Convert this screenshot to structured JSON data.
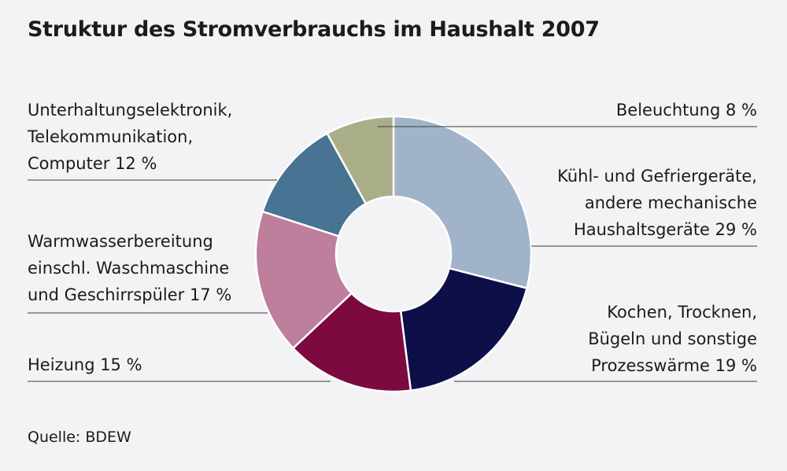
{
  "title": "Struktur des Stromverbrauchs im Haushalt 2007",
  "source": "Quelle: BDEW",
  "chart_data": {
    "type": "pie",
    "donut": true,
    "title": "Struktur des Stromverbrauchs im Haushalt 2007",
    "unit": "%",
    "slices": [
      {
        "label_lines": [
          "Kühl- und Gefriergeräte,",
          "andere mechanische",
          "Haushaltsgeräte 29 %"
        ],
        "value": 29,
        "color": "#a1b3c8"
      },
      {
        "label_lines": [
          "Kochen, Trocknen,",
          "Bügeln und sonstige",
          "Prozesswärme 19 %"
        ],
        "value": 19,
        "color": "#0e0f48"
      },
      {
        "label_lines": [
          "Heizung 15 %"
        ],
        "value": 15,
        "color": "#7c0a41"
      },
      {
        "label_lines": [
          "Warmwasserbereitung",
          "einschl. Waschmaschine",
          "und Geschirrspüler 17 %"
        ],
        "value": 17,
        "color": "#bd7f9c"
      },
      {
        "label_lines": [
          "Unterhaltungselektronik,",
          "Telekommunikation,",
          "Computer 12 %"
        ],
        "value": 12,
        "color": "#487392"
      },
      {
        "label_lines": [
          "Beleuchtung 8 %"
        ],
        "value": 8,
        "color": "#aaae88"
      }
    ]
  }
}
